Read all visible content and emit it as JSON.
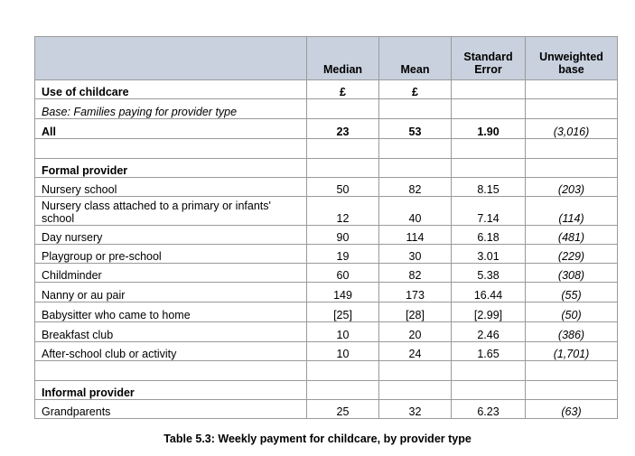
{
  "header": {
    "label": "Use of childcare",
    "col1": "Median",
    "col2": "Mean",
    "col3_l1": "Standard",
    "col3_l2": "Error",
    "col4_l1": "Unweighted",
    "col4_l2": "base",
    "unit1": "£",
    "unit2": "£"
  },
  "base_note": "Base: Families paying for provider type",
  "all": {
    "label": "All",
    "median": "23",
    "mean": "53",
    "se": "1.90",
    "base": "(3,016)"
  },
  "formal": {
    "heading": "Formal provider",
    "rows": [
      {
        "label": "Nursery school",
        "median": "50",
        "mean": "82",
        "se": "8.15",
        "base": "(203)"
      },
      {
        "label_l1": "Nursery class attached to a primary or infants'",
        "label_l2": "school",
        "median": "12",
        "mean": "40",
        "se": "7.14",
        "base": "(114)"
      },
      {
        "label": "Day nursery",
        "median": "90",
        "mean": "114",
        "se": "6.18",
        "base": "(481)"
      },
      {
        "label": "Playgroup or pre-school",
        "median": "19",
        "mean": "30",
        "se": "3.01",
        "base": "(229)"
      },
      {
        "label": "Childminder",
        "median": "60",
        "mean": "82",
        "se": "5.38",
        "base": "(308)"
      },
      {
        "label": "Nanny or au pair",
        "median": "149",
        "mean": "173",
        "se": "16.44",
        "base": "(55)"
      },
      {
        "label": "Babysitter who came to home",
        "median": "[25]",
        "mean": "[28]",
        "se": "[2.99]",
        "base": "(50)"
      },
      {
        "label": "Breakfast club",
        "median": "10",
        "mean": "20",
        "se": "2.46",
        "base": "(386)"
      },
      {
        "label": "After-school club or activity",
        "median": "10",
        "mean": "24",
        "se": "1.65",
        "base": "(1,701)"
      }
    ]
  },
  "informal": {
    "heading": "Informal provider",
    "rows": [
      {
        "label": "Grandparents",
        "median": "25",
        "mean": "32",
        "se": "6.23",
        "base": "(63)"
      }
    ]
  },
  "caption": "Table 5.3: Weekly payment for childcare, by provider type"
}
